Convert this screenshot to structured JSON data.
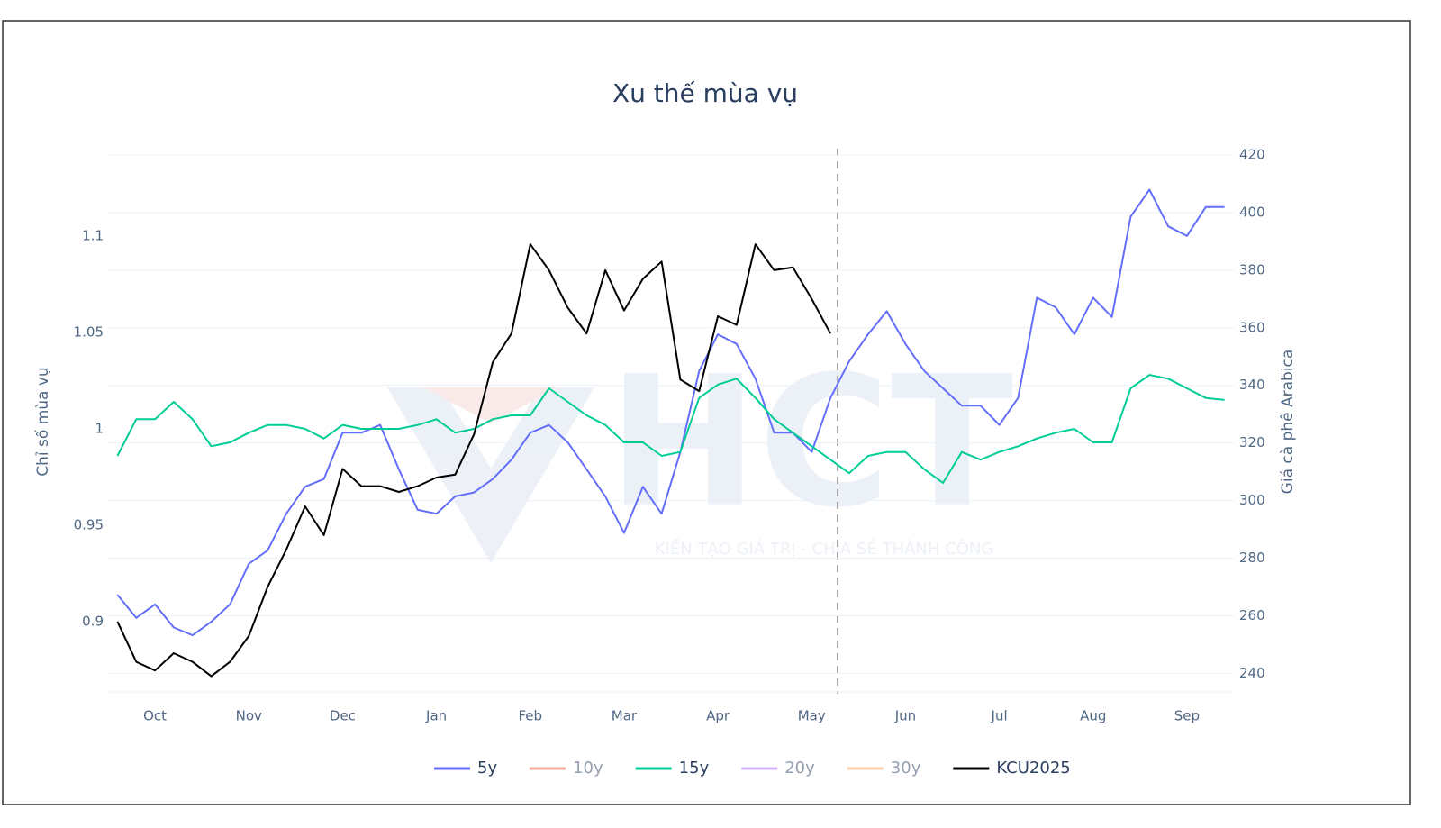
{
  "chart_data": {
    "type": "line",
    "title": "Xu thế mùa vụ",
    "y_axis_label": "Chỉ số mùa vụ",
    "y2_axis_label": "Giá cà phê Arabica",
    "watermark": {
      "logo": "HCT",
      "slogan": "KIẾN TẠO GIÁ TRỊ - CHIA SẺ THÀNH CÔNG"
    },
    "categories": [
      null,
      null,
      "Oct",
      null,
      null,
      null,
      null,
      "Nov",
      null,
      null,
      null,
      null,
      "Dec",
      null,
      null,
      null,
      null,
      "Jan",
      null,
      null,
      null,
      null,
      "Feb",
      null,
      null,
      null,
      null,
      "Mar",
      null,
      null,
      null,
      null,
      "Apr",
      null,
      null,
      null,
      null,
      "May",
      null,
      null,
      null,
      null,
      "Jun",
      null,
      null,
      null,
      null,
      "Jul",
      null,
      null,
      null,
      null,
      "Aug",
      null,
      null,
      null,
      null,
      "Sep",
      null,
      null
    ],
    "ylim": [
      0.865,
      1.142
    ],
    "yticks": [
      0.9,
      0.95,
      1,
      1.05,
      1.1
    ],
    "y2lim": [
      234.5,
      420
    ],
    "y2ticks": [
      240,
      260,
      280,
      300,
      320,
      340,
      360,
      380,
      400,
      420
    ],
    "grid": true,
    "legend": "bottom",
    "series": [
      {
        "name": "5y",
        "color": "#636efa",
        "values": [
          0.914,
          0.902,
          0.909,
          0.897,
          0.893,
          0.9,
          0.909,
          0.93,
          0.937,
          0.956,
          0.97,
          0.974,
          0.998,
          0.998,
          1.002,
          0.979,
          0.958,
          0.956,
          0.965,
          0.967,
          0.974,
          0.984,
          0.998,
          1.002,
          0.993,
          0.979,
          0.965,
          0.946,
          0.97,
          0.956,
          0.988,
          1.03,
          1.049,
          1.044,
          1.026,
          0.998,
          0.998,
          0.988,
          1.016,
          1.035,
          1.049,
          1.061,
          1.044,
          1.03,
          1.021,
          1.012,
          1.012,
          1.002,
          1.016,
          1.068,
          1.063,
          1.049,
          1.068,
          1.058,
          1.11,
          1.124,
          1.105,
          1.1,
          1.115,
          1.115
        ]
      },
      {
        "name": "10y",
        "color": "#ef553b",
        "visible": "legendonly"
      },
      {
        "name": "15y",
        "color": "#00cc96",
        "values": [
          0.986,
          1.005,
          1.005,
          1.014,
          1.005,
          0.991,
          0.993,
          0.998,
          1.002,
          1.002,
          1.0,
          0.995,
          1.002,
          1.0,
          1.0,
          1.0,
          1.002,
          1.005,
          0.998,
          1.0,
          1.005,
          1.007,
          1.007,
          1.021,
          1.014,
          1.007,
          1.002,
          0.993,
          0.993,
          0.986,
          0.988,
          1.016,
          1.023,
          1.026,
          1.016,
          1.005,
          0.998,
          0.991,
          0.984,
          0.977,
          0.986,
          0.988,
          0.988,
          0.979,
          0.972,
          0.988,
          0.984,
          0.988,
          0.991,
          0.995,
          0.998,
          1.0,
          0.993,
          0.993,
          1.021,
          1.028,
          1.026,
          1.021,
          1.016,
          1.015
        ]
      },
      {
        "name": "20y",
        "color": "#ab63fa",
        "visible": "legendonly"
      },
      {
        "name": "30y",
        "color": "#ffa15a",
        "visible": "legendonly"
      },
      {
        "name": "KCU2025",
        "color": "#000000",
        "axis": "y2",
        "values": [
          258,
          244,
          241,
          247,
          244,
          239,
          244,
          253,
          270,
          283,
          298,
          288,
          311,
          305,
          305,
          303,
          305,
          308,
          309,
          323,
          348,
          358,
          389,
          380,
          367,
          358,
          380,
          366,
          377,
          383,
          342,
          338,
          364,
          361,
          389,
          380,
          381,
          370,
          358,
          null,
          null,
          null,
          null,
          null,
          null,
          null,
          null,
          null,
          null,
          null,
          null,
          null,
          null,
          null,
          null,
          null,
          null,
          null,
          null,
          null
        ]
      }
    ]
  }
}
